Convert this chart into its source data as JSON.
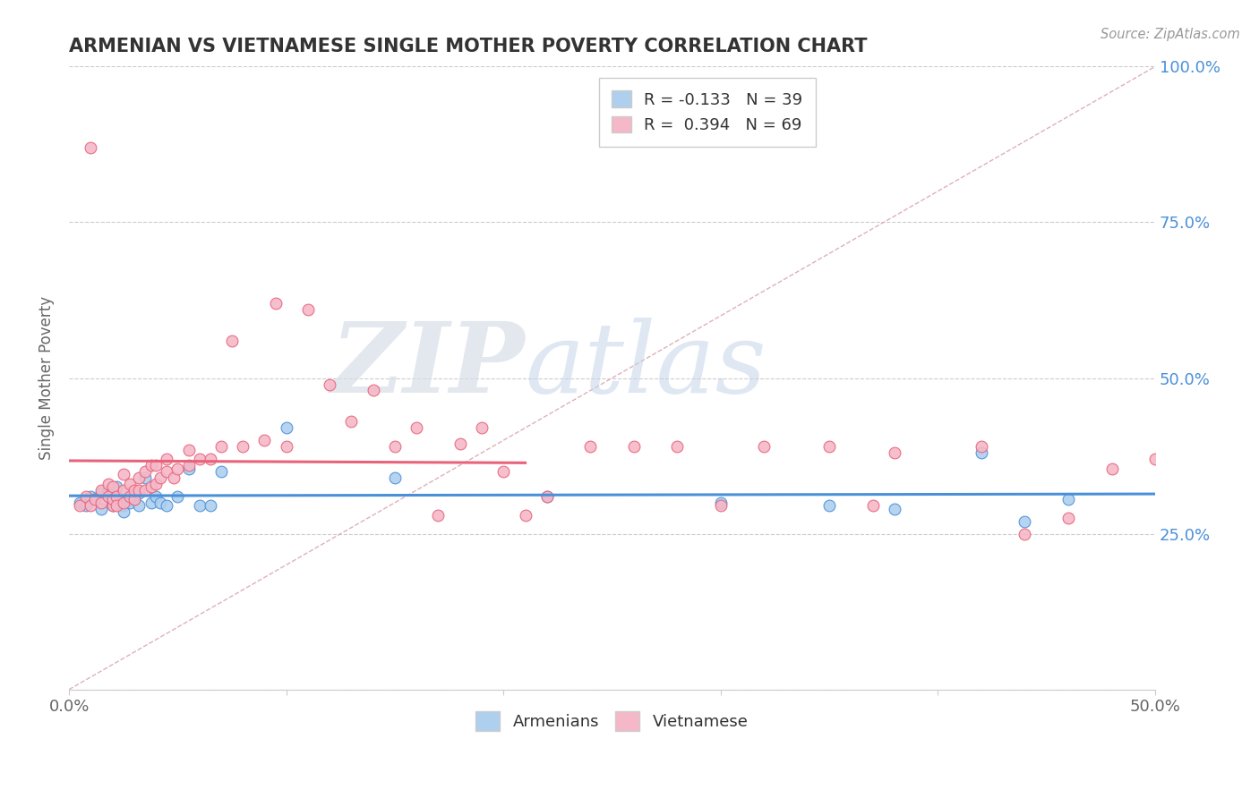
{
  "title": "ARMENIAN VS VIETNAMESE SINGLE MOTHER POVERTY CORRELATION CHART",
  "source": "Source: ZipAtlas.com",
  "ylabel": "Single Mother Poverty",
  "xlim": [
    0.0,
    0.5
  ],
  "ylim": [
    0.0,
    1.0
  ],
  "xticks": [
    0.0,
    0.1,
    0.2,
    0.3,
    0.4,
    0.5
  ],
  "xtick_labels": [
    "0.0%",
    "",
    "",
    "",
    "",
    "50.0%"
  ],
  "yticks_right": [
    0.0,
    0.25,
    0.5,
    0.75,
    1.0
  ],
  "ytick_labels_right": [
    "",
    "25.0%",
    "50.0%",
    "75.0%",
    "100.0%"
  ],
  "legend_labels": [
    "Armenians",
    "Vietnamese"
  ],
  "R_armenian": -0.133,
  "N_armenian": 39,
  "R_vietnamese": 0.394,
  "N_vietnamese": 69,
  "color_armenian": "#aecfee",
  "color_vietnamese": "#f4b8c8",
  "line_color_armenian": "#4a90d9",
  "line_color_vietnamese": "#e8637a",
  "ref_line_color": "#e0b0b8",
  "background_color": "#ffffff",
  "watermark_zip": "ZIP",
  "watermark_atlas": "atlas",
  "armenian_x": [
    0.005,
    0.008,
    0.01,
    0.012,
    0.015,
    0.015,
    0.018,
    0.018,
    0.02,
    0.02,
    0.022,
    0.022,
    0.025,
    0.025,
    0.025,
    0.028,
    0.028,
    0.03,
    0.032,
    0.032,
    0.035,
    0.038,
    0.04,
    0.042,
    0.045,
    0.05,
    0.055,
    0.06,
    0.065,
    0.07,
    0.1,
    0.15,
    0.22,
    0.3,
    0.35,
    0.38,
    0.42,
    0.44,
    0.46
  ],
  "armenian_y": [
    0.3,
    0.295,
    0.31,
    0.305,
    0.315,
    0.29,
    0.315,
    0.32,
    0.3,
    0.295,
    0.31,
    0.325,
    0.305,
    0.295,
    0.285,
    0.31,
    0.3,
    0.305,
    0.315,
    0.295,
    0.34,
    0.3,
    0.31,
    0.3,
    0.295,
    0.31,
    0.355,
    0.295,
    0.295,
    0.35,
    0.42,
    0.34,
    0.31,
    0.3,
    0.295,
    0.29,
    0.38,
    0.27,
    0.305
  ],
  "vietnamese_x": [
    0.005,
    0.008,
    0.01,
    0.01,
    0.012,
    0.015,
    0.015,
    0.018,
    0.018,
    0.02,
    0.02,
    0.02,
    0.022,
    0.022,
    0.025,
    0.025,
    0.025,
    0.028,
    0.028,
    0.03,
    0.03,
    0.032,
    0.032,
    0.035,
    0.035,
    0.038,
    0.038,
    0.04,
    0.04,
    0.042,
    0.045,
    0.045,
    0.048,
    0.05,
    0.055,
    0.055,
    0.06,
    0.065,
    0.07,
    0.075,
    0.08,
    0.09,
    0.095,
    0.1,
    0.11,
    0.12,
    0.13,
    0.14,
    0.15,
    0.16,
    0.17,
    0.18,
    0.19,
    0.2,
    0.21,
    0.22,
    0.24,
    0.26,
    0.28,
    0.3,
    0.32,
    0.35,
    0.37,
    0.38,
    0.42,
    0.44,
    0.46,
    0.48,
    0.5
  ],
  "vietnamese_y": [
    0.295,
    0.31,
    0.295,
    0.87,
    0.305,
    0.3,
    0.32,
    0.31,
    0.33,
    0.295,
    0.305,
    0.325,
    0.31,
    0.295,
    0.3,
    0.32,
    0.345,
    0.31,
    0.33,
    0.305,
    0.32,
    0.32,
    0.34,
    0.32,
    0.35,
    0.325,
    0.36,
    0.33,
    0.36,
    0.34,
    0.35,
    0.37,
    0.34,
    0.355,
    0.36,
    0.385,
    0.37,
    0.37,
    0.39,
    0.56,
    0.39,
    0.4,
    0.62,
    0.39,
    0.61,
    0.49,
    0.43,
    0.48,
    0.39,
    0.42,
    0.28,
    0.395,
    0.42,
    0.35,
    0.28,
    0.31,
    0.39,
    0.39,
    0.39,
    0.295,
    0.39,
    0.39,
    0.295,
    0.38,
    0.39,
    0.25,
    0.275,
    0.355,
    0.37
  ]
}
